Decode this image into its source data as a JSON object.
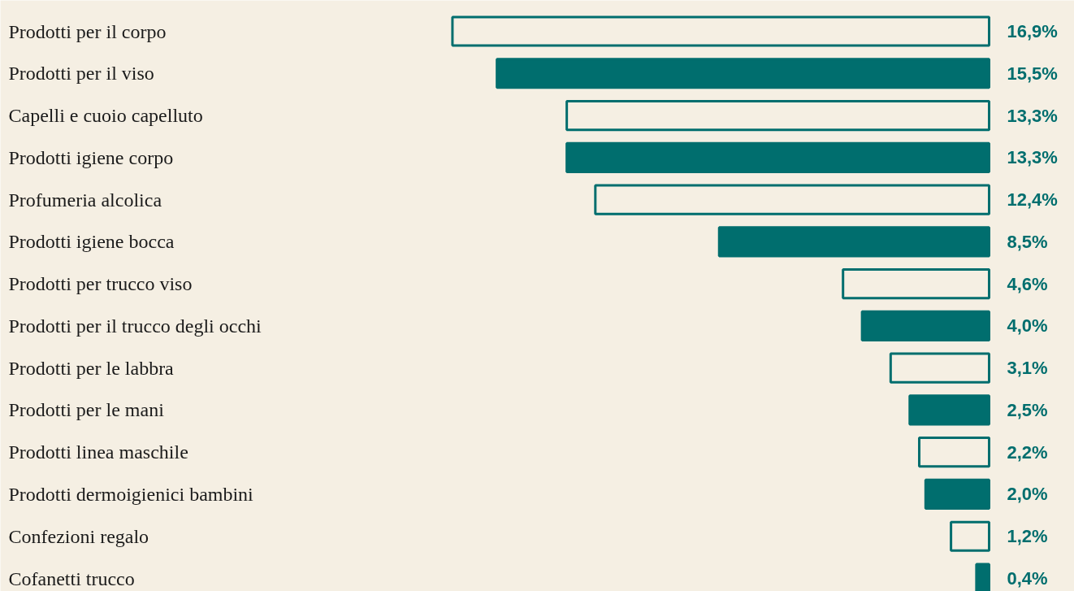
{
  "chart_data": {
    "type": "bar",
    "orientation": "horizontal",
    "tick_labels": "y",
    "grid": false,
    "categories": [
      "Prodotti per il corpo",
      "Prodotti per il viso",
      "Capelli e cuoio capelluto",
      "Prodotti igiene corpo",
      "Profumeria alcolica",
      "Prodotti igiene bocca",
      "Prodotti per trucco viso",
      "Prodotti per il trucco degli occhi",
      "Prodotti per le labbra",
      "Prodotti per le mani",
      "Prodotti linea maschile",
      "Prodotti dermoigienici bambini",
      "Confezioni regalo",
      "Cofanetti trucco"
    ],
    "series": [
      {
        "color": "#006e6e",
        "values": [
          16.9,
          15.5,
          13.3,
          13.3,
          12.4,
          8.5,
          4.6,
          4.0,
          3.1,
          2.5,
          2.2,
          2.0,
          1.2,
          0.4
        ],
        "colors": [
          "#f5efe3",
          "#006e6e",
          "#f5efe3",
          "#006e6e",
          "#f5efe3",
          "#006e6e",
          "#f5efe3",
          "#006e6e",
          "#f5efe3",
          "#006e6e",
          "#f5efe3",
          "#006e6e",
          "#f5efe3",
          "#006e6e"
        ],
        "value_labels": [
          "16,9%",
          "15,5%",
          "13,3%",
          "13,3%",
          "12,4%",
          "8,5%",
          "4,6%",
          "4,0%",
          "3,1%",
          "2,5%",
          "2,2%",
          "2,0%",
          "1,2%",
          "0,4%"
        ]
      }
    ]
  }
}
